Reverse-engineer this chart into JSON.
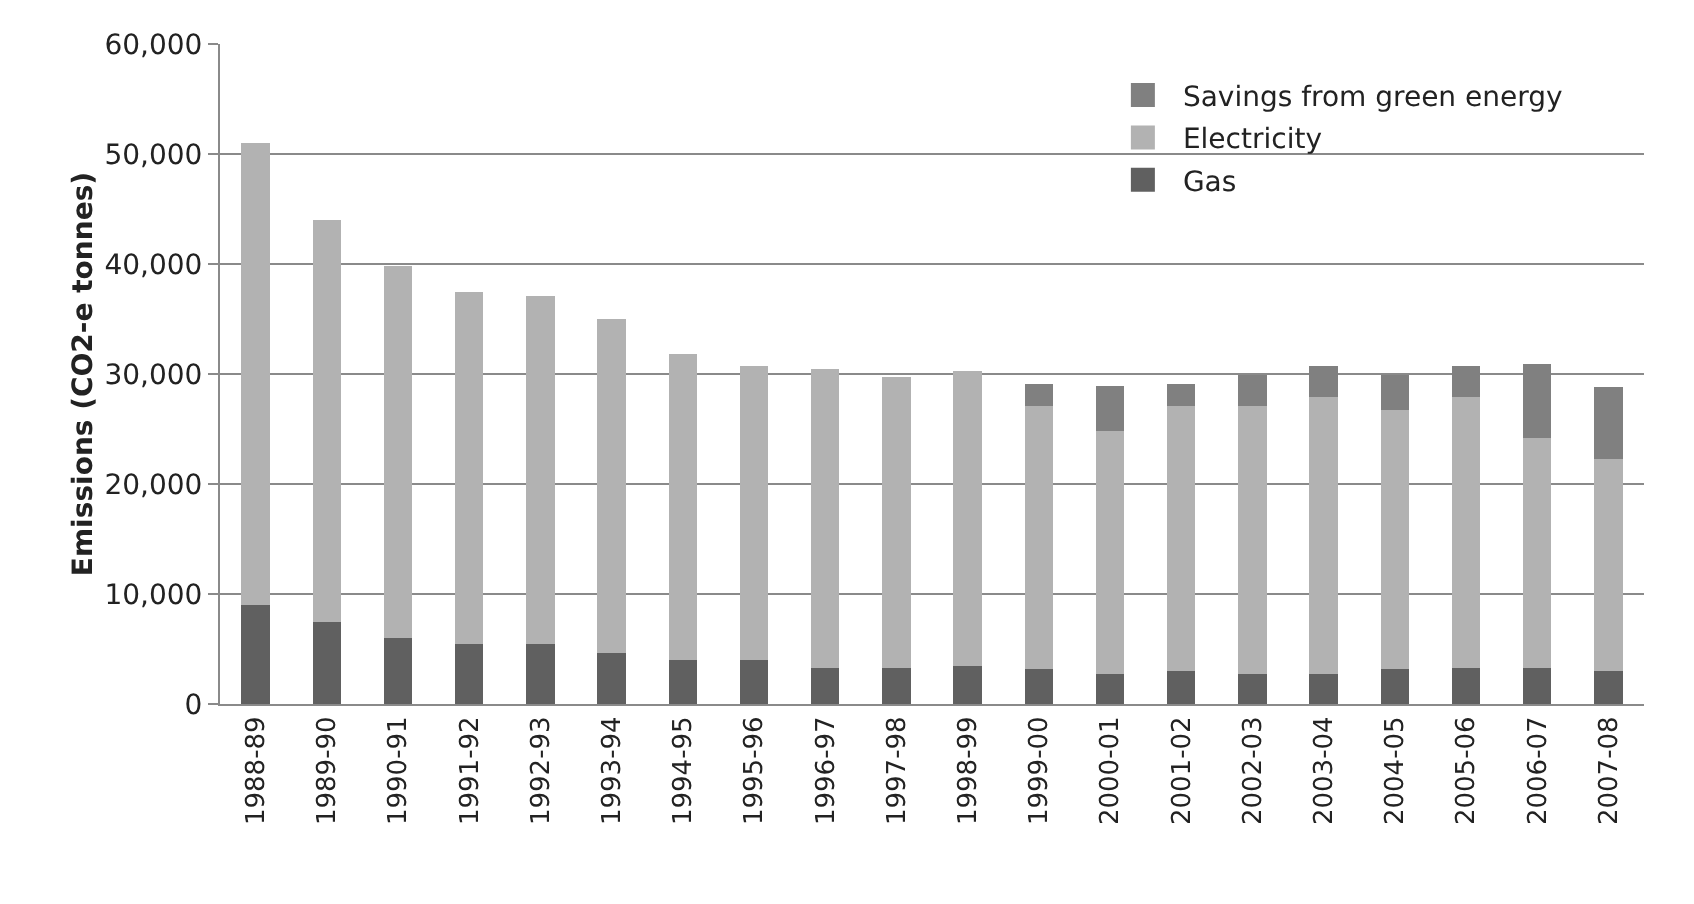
{
  "chart_data": {
    "type": "bar",
    "stacked": true,
    "ylabel": "Emissions (CO2-e tonnes)",
    "categories": [
      "1988-89",
      "1989-90",
      "1990-91",
      "1991-92",
      "1992-93",
      "1993-94",
      "1994-95",
      "1995-96",
      "1996-97",
      "1997-98",
      "1998-99",
      "1999-00",
      "2000-01",
      "2001-02",
      "2002-03",
      "2003-04",
      "2004-05",
      "2005-06",
      "2006-07",
      "2007-08"
    ],
    "series": [
      {
        "name": "Gas",
        "color": "#606060",
        "values": [
          9000,
          7500,
          6000,
          5500,
          5500,
          4600,
          4000,
          4000,
          3300,
          3300,
          3500,
          3200,
          2700,
          3000,
          2700,
          2700,
          3200,
          3300,
          3300,
          3000
        ]
      },
      {
        "name": "Electricity",
        "color": "#b2b2b2",
        "values": [
          42000,
          36500,
          33800,
          32000,
          31600,
          30400,
          27800,
          26700,
          27200,
          26400,
          26800,
          23900,
          22100,
          24100,
          24400,
          25200,
          23500,
          24600,
          20900,
          19300
        ]
      },
      {
        "name": "Savings from green energy",
        "color": "#808080",
        "values": [
          null,
          null,
          null,
          null,
          null,
          null,
          null,
          null,
          null,
          null,
          null,
          2000,
          4100,
          2000,
          2800,
          2800,
          3200,
          2800,
          6700,
          6500
        ]
      }
    ],
    "ylim": [
      0,
      60000
    ],
    "yticks": [
      {
        "value": 0,
        "label": "0"
      },
      {
        "value": 10000,
        "label": "10,000"
      },
      {
        "value": 20000,
        "label": "20,000"
      },
      {
        "value": 30000,
        "label": "30,000"
      },
      {
        "value": 40000,
        "label": "40,000"
      },
      {
        "value": 50000,
        "label": "50,000"
      },
      {
        "value": 60000,
        "label": "60,000"
      }
    ],
    "grid": "y",
    "legend": "top right"
  }
}
